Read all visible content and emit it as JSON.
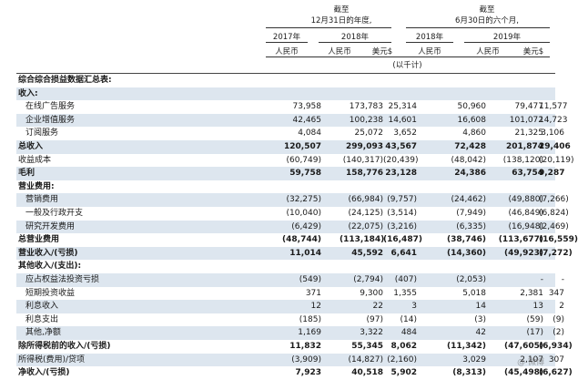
{
  "header": {
    "period1_line1": "截至",
    "period1_line2": "12月31日的年度,",
    "period2_line1": "截至",
    "period2_line2": "6月30日的六个月,",
    "years": [
      "2017年",
      "2018年",
      "2018年",
      "2019年"
    ],
    "currencies": [
      "人民币",
      "人民币",
      "美元$",
      "人民币",
      "人民币",
      "美元$"
    ],
    "unit": "(以千计)"
  },
  "rows": [
    {
      "label": "综合综合损益数据汇总表:",
      "indent": 0,
      "bold": true,
      "shaded": false,
      "values": [
        "",
        "",
        "",
        "",
        "",
        ""
      ]
    },
    {
      "label": "收入:",
      "indent": 0,
      "bold": true,
      "shaded": true,
      "values": [
        "",
        "",
        "",
        "",
        "",
        ""
      ]
    },
    {
      "label": "在线广告服务",
      "indent": 1,
      "bold": false,
      "shaded": false,
      "values": [
        "73,958",
        "173,783",
        "25,314",
        "50,960",
        "79,477",
        "11,577"
      ]
    },
    {
      "label": "企业增值服务",
      "indent": 1,
      "bold": false,
      "shaded": true,
      "values": [
        "42,465",
        "100,238",
        "14,601",
        "16,608",
        "101,072",
        "14,723"
      ]
    },
    {
      "label": "订阅服务",
      "indent": 1,
      "bold": false,
      "shaded": false,
      "values": [
        "4,084",
        "25,072",
        "3,652",
        "4,860",
        "21,325",
        "3,106"
      ]
    },
    {
      "label": "总收入",
      "indent": 0,
      "bold": true,
      "shaded": true,
      "values": [
        "120,507",
        "299,093",
        "43,567",
        "72,428",
        "201,874",
        "29,406"
      ]
    },
    {
      "label": "收益成本",
      "indent": 0,
      "bold": false,
      "shaded": false,
      "values": [
        "(60,749)",
        "(140,317)",
        "(20,439)",
        "(48,042)",
        "(138,120)",
        "(20,119)"
      ]
    },
    {
      "label": "毛利",
      "indent": 0,
      "bold": true,
      "shaded": true,
      "values": [
        "59,758",
        "158,776",
        "23,128",
        "24,386",
        "63,754",
        "9,287"
      ]
    },
    {
      "label": "营业费用:",
      "indent": 0,
      "bold": true,
      "shaded": false,
      "values": [
        "",
        "",
        "",
        "",
        "",
        ""
      ]
    },
    {
      "label": "营销费用",
      "indent": 1,
      "bold": false,
      "shaded": true,
      "values": [
        "(32,275)",
        "(66,984)",
        "(9,757)",
        "(24,462)",
        "(49,880)",
        "(7,266)"
      ]
    },
    {
      "label": "一般及行政开支",
      "indent": 1,
      "bold": false,
      "shaded": false,
      "values": [
        "(10,040)",
        "(24,125)",
        "(3,514)",
        "(7,949)",
        "(46,849)",
        "(6,824)"
      ]
    },
    {
      "label": "研究开发费用",
      "indent": 1,
      "bold": false,
      "shaded": true,
      "values": [
        "(6,429)",
        "(22,075)",
        "(3,216)",
        "(6,335)",
        "(16,948)",
        "(2,469)"
      ]
    },
    {
      "label": "总营业费用",
      "indent": 0,
      "bold": true,
      "shaded": false,
      "values": [
        "(48,744)",
        "(113,184)",
        "(16,487)",
        "(38,746)",
        "(113,677)",
        "(16,559)"
      ]
    },
    {
      "label": "营业收入/(亏损)",
      "indent": 0,
      "bold": true,
      "shaded": true,
      "values": [
        "11,014",
        "45,592",
        "6,641",
        "(14,360)",
        "(49,923)",
        "(7,272)"
      ]
    },
    {
      "label": "其他收入/(支出):",
      "indent": 0,
      "bold": true,
      "shaded": false,
      "values": [
        "",
        "",
        "",
        "",
        "",
        ""
      ]
    },
    {
      "label": "应占权益法投资亏损",
      "indent": 1,
      "bold": false,
      "shaded": true,
      "values": [
        "(549)",
        "(2,794)",
        "(407)",
        "(2,053)",
        "-",
        "-"
      ]
    },
    {
      "label": "短期投资收益",
      "indent": 1,
      "bold": false,
      "shaded": false,
      "values": [
        "371",
        "9,300",
        "1,355",
        "5,018",
        "2,381",
        "347"
      ]
    },
    {
      "label": "利息收入",
      "indent": 1,
      "bold": false,
      "shaded": true,
      "values": [
        "12",
        "22",
        "3",
        "14",
        "13",
        "2"
      ]
    },
    {
      "label": "利息支出",
      "indent": 1,
      "bold": false,
      "shaded": false,
      "values": [
        "(185)",
        "(97)",
        "(14)",
        "(3)",
        "(59)",
        "(9)"
      ]
    },
    {
      "label": "其他,净额",
      "indent": 1,
      "bold": false,
      "shaded": true,
      "values": [
        "1,169",
        "3,322",
        "484",
        "42",
        "(17)",
        "(2)"
      ]
    },
    {
      "label": "除所得税前的收入/(亏损)",
      "indent": 0,
      "bold": true,
      "shaded": false,
      "values": [
        "11,832",
        "55,345",
        "8,062",
        "(11,342)",
        "(47,605)",
        "(6,934)"
      ]
    },
    {
      "label": "所得税(费用)/贷项",
      "indent": 0,
      "bold": false,
      "shaded": true,
      "values": [
        "(3,909)",
        "(14,827)",
        "(2,160)",
        "3,029",
        "2,107",
        "307"
      ]
    },
    {
      "label": "净收入/(亏损)",
      "indent": 0,
      "bold": true,
      "shaded": false,
      "values": [
        "7,923",
        "40,518",
        "5,902",
        "(8,313)",
        "(45,498)",
        "(6,627)"
      ]
    }
  ]
}
